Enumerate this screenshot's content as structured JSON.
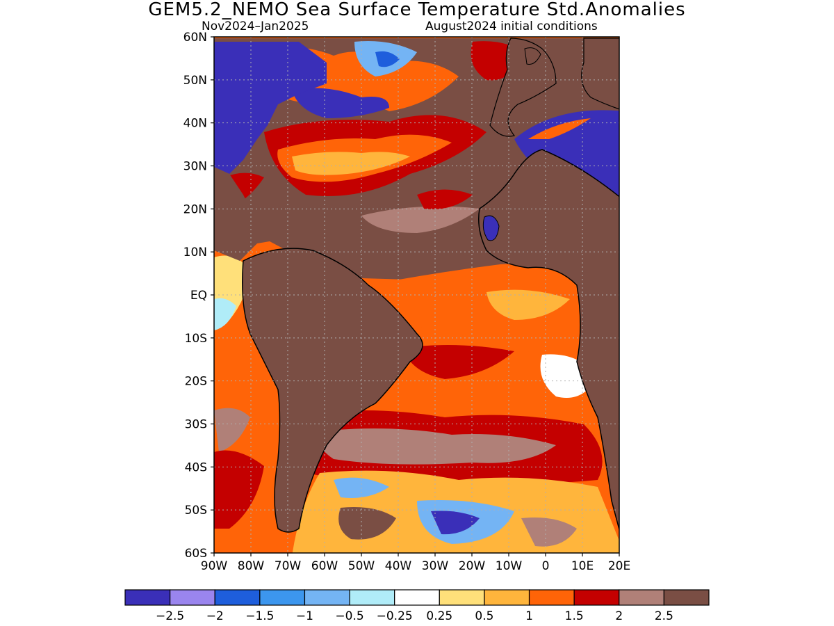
{
  "title": "GEM5.2_NEMO Sea Surface Temperature Std.Anomalies",
  "subtitle_left": "Nov2024–Jan2025",
  "subtitle_right": "August2024 initial conditions",
  "map": {
    "lon_range": [
      -90,
      20
    ],
    "lat_range": [
      -60,
      60
    ],
    "lat_labels": [
      "60N",
      "50N",
      "40N",
      "30N",
      "20N",
      "10N",
      "EQ",
      "10S",
      "20S",
      "30S",
      "40S",
      "50S",
      "60S"
    ],
    "lon_labels": [
      "90W",
      "80W",
      "70W",
      "60W",
      "50W",
      "40W",
      "30W",
      "20W",
      "10W",
      "0",
      "10E",
      "20E"
    ],
    "colors": {
      "land": "#7a4e44",
      "coastline": "#000000",
      "grid": "#b0b0b0"
    }
  },
  "colorbar": {
    "colors": [
      "#3a2fb8",
      "#9a85ee",
      "#1e5edc",
      "#3c96ee",
      "#74b4f4",
      "#b0ecf8",
      "#ffffff",
      "#ffe07a",
      "#ffb53c",
      "#ff6408",
      "#c40000",
      "#b08078",
      "#7a4e44"
    ],
    "labels": [
      "-2.5",
      "-2",
      "-1.5",
      "-1",
      "-0.5",
      "-0.25",
      "0.25",
      "0.5",
      "1",
      "1.5",
      "2",
      "2.5"
    ]
  }
}
